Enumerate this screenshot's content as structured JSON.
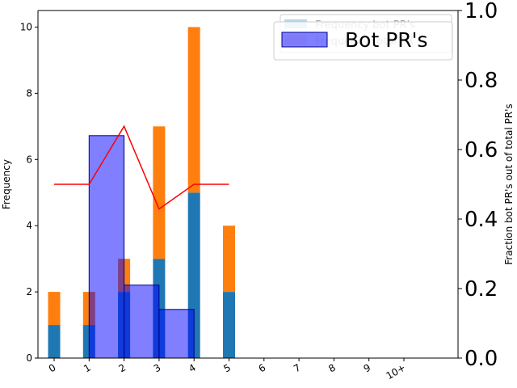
{
  "chart_data": {
    "type": "bar",
    "categories": [
      "0",
      "1",
      "2",
      "3",
      "4",
      "5",
      "6",
      "7",
      "8",
      "9",
      "10+"
    ],
    "ylabel_left": "Frequency",
    "ylabel_right": "Fraction bot PR's out of total PR's",
    "ylim_left": [
      0,
      10.5
    ],
    "ylim_right": [
      0,
      1
    ],
    "yticks_left": [
      "0",
      "2",
      "4",
      "6",
      "8",
      "10"
    ],
    "yticks_right": [
      "0.0",
      "0.2",
      "0.4",
      "0.6",
      "0.8",
      "1.0"
    ],
    "stacked_series": [
      {
        "color": "#1f77b4",
        "x": [
          0,
          1,
          2,
          3,
          4,
          5
        ],
        "values": [
          1,
          1,
          2,
          3,
          5,
          2
        ]
      },
      {
        "color": "#ff7f0e",
        "x": [
          0,
          1,
          2,
          3,
          4,
          5
        ],
        "values": [
          1,
          1,
          1,
          4,
          5,
          2
        ]
      }
    ],
    "overlay_bars": {
      "name": "Bot PR's",
      "color": "#0000ff",
      "opacity": 0.5,
      "bins": [
        [
          1,
          2,
          0.64
        ],
        [
          2,
          3,
          0.21
        ],
        [
          3,
          4,
          0.14
        ]
      ]
    },
    "fraction_line": {
      "color": "#ff0000",
      "x": [
        0,
        1,
        2,
        3,
        4,
        5
      ],
      "y": [
        0.5,
        0.5,
        0.667,
        0.429,
        0.5,
        0.5
      ]
    },
    "legend_back": [
      {
        "label": "Frequency bot PR's",
        "color": "#1f77b4"
      },
      {
        "label": "Frequency total PR's",
        "color": "#ff7f0e"
      }
    ],
    "legend_front": [
      {
        "label": "Bot PR's",
        "color": "#0000ff"
      }
    ],
    "grid": false
  }
}
